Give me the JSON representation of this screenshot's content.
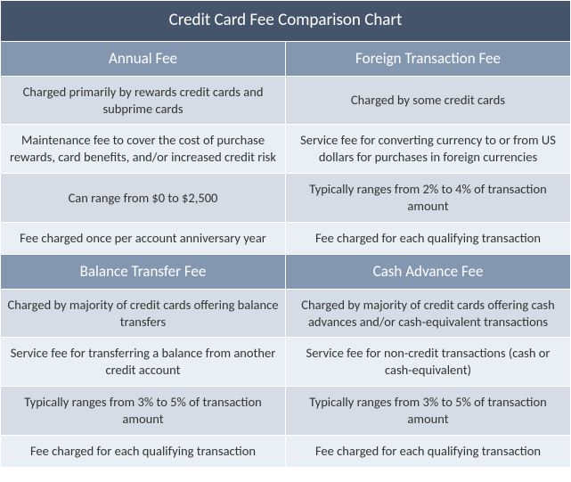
{
  "colors": {
    "title_bg": "#44546a",
    "header_bg": "#8497b0",
    "row_a_bg": "#d6dce5",
    "row_b_bg": "#eaeef5",
    "border": "#ffffff",
    "title_text": "#ffffff",
    "body_text": "#333333"
  },
  "title": "Credit Card Fee Comparison Chart",
  "sections": [
    {
      "left_header": "Annual Fee",
      "right_header": "Foreign Transaction Fee",
      "rows": [
        {
          "left": "Charged primarily by rewards credit cards and subprime cards",
          "right": "Charged by some credit cards"
        },
        {
          "left": "Maintenance fee to cover the cost of purchase rewards, card benefits, and/or increased credit risk",
          "right": "Service fee for converting currency to or from US dollars for purchases in foreign currencies"
        },
        {
          "left": "Can range from $0 to $2,500",
          "right": "Typically ranges from 2% to 4% of transaction amount"
        },
        {
          "left": "Fee charged once per account anniversary year",
          "right": "Fee charged for each qualifying transaction"
        }
      ]
    },
    {
      "left_header": "Balance Transfer Fee",
      "right_header": "Cash Advance Fee",
      "rows": [
        {
          "left": "Charged by majority of credit cards offering balance transfers",
          "right": "Charged by majority of credit cards offering cash advances and/or cash-equivalent transactions"
        },
        {
          "left": "Service fee for transferring a balance from another credit account",
          "right": "Service fee for non-credit transactions (cash or cash-equivalent)"
        },
        {
          "left": "Typically ranges from 3% to 5% of transaction amount",
          "right": "Typically ranges from 3% to 5% of transaction amount"
        },
        {
          "left": "Fee charged for each qualifying transaction",
          "right": "Fee charged for each qualifying transaction"
        }
      ]
    }
  ]
}
